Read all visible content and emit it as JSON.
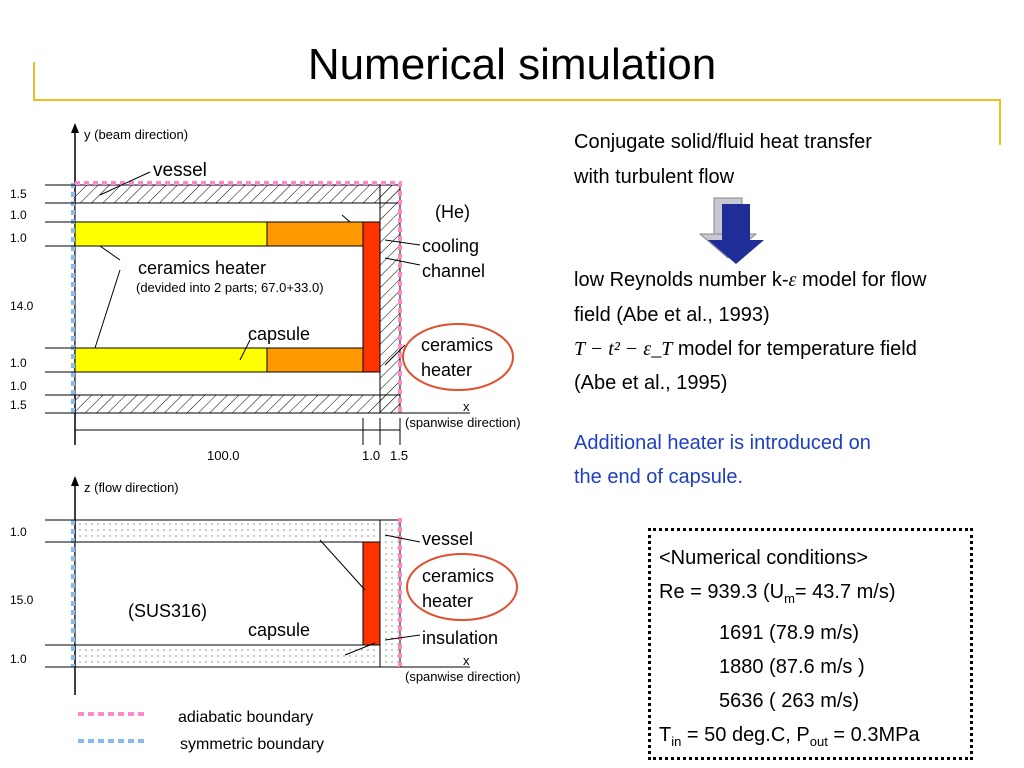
{
  "title": "Numerical simulation",
  "diagram_top": {
    "axis_y_label": "y (beam direction)",
    "axis_x_label": "x",
    "axis_x_sub": "(spanwise direction)",
    "dims_left": [
      "1.5",
      "1.0",
      "1.0",
      "14.0",
      "1.0",
      "1.0",
      "1.5"
    ],
    "dims_bottom": [
      "100.0",
      "1.0",
      "1.5"
    ],
    "labels": {
      "vessel": "vessel",
      "he": "(He)",
      "cooling1": "cooling",
      "cooling2": "channel",
      "ceramics": "ceramics heater",
      "devided": "(devided into 2 parts; 67.0+33.0)",
      "capsule": "capsule",
      "cer1": "ceramics",
      "cer2": "heater"
    }
  },
  "diagram_bottom": {
    "axis_z_label": "z (flow direction)",
    "axis_x_label": "x",
    "axis_x_sub": "(spanwise direction)",
    "dims_left": [
      "1.0",
      "15.0",
      "1.0"
    ],
    "labels": {
      "vessel": "vessel",
      "cer1": "ceramics",
      "cer2": "heater",
      "sus": "(SUS316)",
      "capsule": "capsule",
      "insulation": "insulation"
    }
  },
  "legend": {
    "adiabatic": "adiabatic boundary",
    "symmetric": "symmetric boundary"
  },
  "right": {
    "line1": "Conjugate solid/fluid heat transfer",
    "line2": "with turbulent flow",
    "line3a": "low Reynolds number k-",
    "line3eps": "ε",
    "line3b": " model for flow",
    "line4": "field (Abe et al., 1993)",
    "formula": "T − t² − ε_T",
    "line5b": " model for temperature field",
    "line6": "(Abe et al., 1995)",
    "blue1": "Additional heater is introduced on",
    "blue2": "the end of capsule."
  },
  "conditions": {
    "heading": "<Numerical conditions>",
    "re_prefix": "Re = 939.3 (U",
    "re_sub": "m",
    "re_suffix": "= 43.7 m/s)",
    "row2": "1691 (78.9 m/s)",
    "row3": "1880 (87.6 m/s )",
    "row4": "5636 ( 263 m/s)",
    "t_prefix": "T",
    "t_sub": "in",
    "t_mid": " = 50 deg.C, P",
    "p_sub": "out",
    "t_suffix": " = 0.3MPa"
  },
  "colors": {
    "rule": "#e8c020",
    "yellow": "#ffff00",
    "orange": "#ff9900",
    "red": "#ff3300",
    "pink": "#ff88cc",
    "lightblue": "#88bbee",
    "blue_text": "#1f3fbf",
    "circle": "#e05030"
  }
}
